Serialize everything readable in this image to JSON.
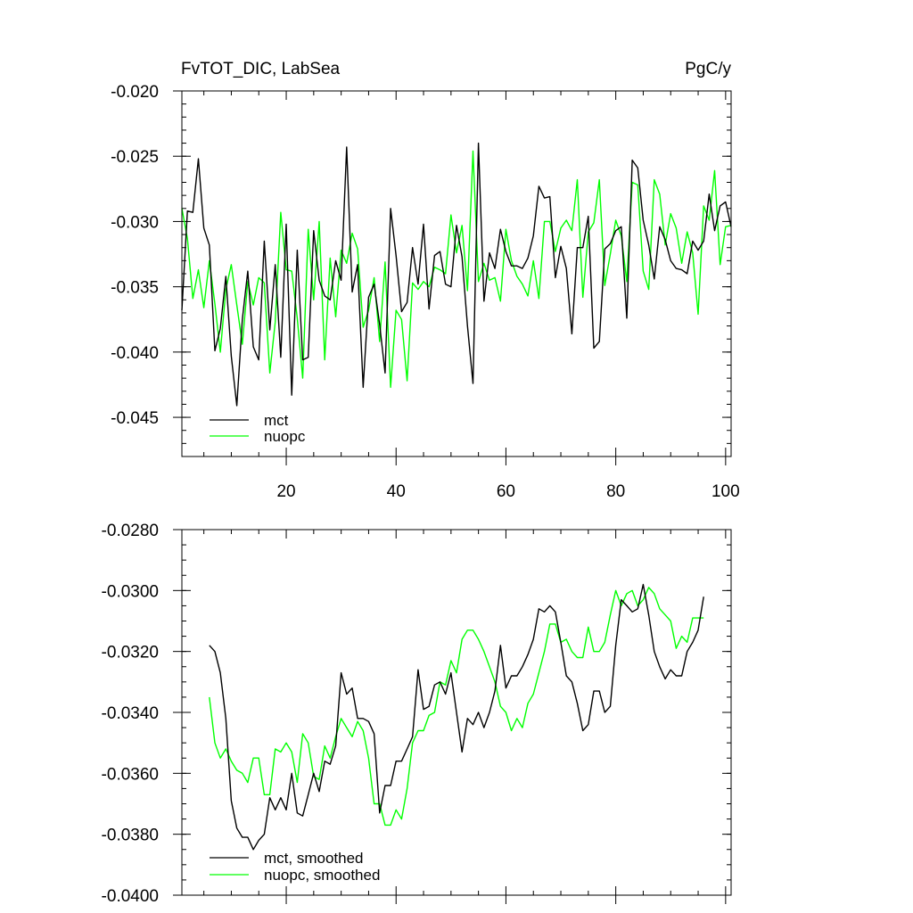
{
  "chart_data": [
    {
      "type": "line",
      "title_left": "FvTOT_DIC, LabSea",
      "title_right": "PgC/y",
      "xlim": [
        1,
        101
      ],
      "ylim": [
        -0.048,
        -0.02
      ],
      "xticks": [
        20,
        40,
        60,
        80,
        100
      ],
      "xtick_labels": [
        "20",
        "40",
        "60",
        "80",
        "100"
      ],
      "yticks": [
        -0.045,
        -0.04,
        -0.035,
        -0.03,
        -0.025,
        -0.02
      ],
      "ytick_labels": [
        "-0.045",
        "-0.040",
        "-0.035",
        "-0.030",
        "-0.025",
        "-0.020"
      ],
      "legend_position": "bottom-left",
      "series": [
        {
          "name": "mct",
          "color": "#000000",
          "x": [
            1,
            2,
            3,
            4,
            5,
            6,
            7,
            8,
            9,
            10,
            11,
            12,
            13,
            14,
            15,
            16,
            17,
            18,
            19,
            20,
            21,
            22,
            23,
            24,
            25,
            26,
            27,
            28,
            29,
            30,
            31,
            32,
            33,
            34,
            35,
            36,
            37,
            38,
            39,
            40,
            41,
            42,
            43,
            44,
            45,
            46,
            47,
            48,
            49,
            50,
            51,
            52,
            53,
            54,
            55,
            56,
            57,
            58,
            59,
            60,
            61,
            62,
            63,
            64,
            65,
            66,
            67,
            68,
            69,
            70,
            71,
            72,
            73,
            74,
            75,
            76,
            77,
            78,
            79,
            80,
            81,
            82,
            83,
            84,
            85,
            86,
            87,
            88,
            89,
            90,
            91,
            92,
            93,
            94,
            95,
            96,
            97,
            98,
            99,
            100,
            101
          ],
          "values": [
            -0.0368,
            -0.0292,
            -0.0293,
            -0.0252,
            -0.0305,
            -0.0318,
            -0.0399,
            -0.0382,
            -0.0342,
            -0.0403,
            -0.0441,
            -0.0375,
            -0.0338,
            -0.0396,
            -0.0406,
            -0.0315,
            -0.0383,
            -0.0333,
            -0.0404,
            -0.0302,
            -0.0433,
            -0.0322,
            -0.0406,
            -0.0404,
            -0.0307,
            -0.0345,
            -0.0357,
            -0.036,
            -0.033,
            -0.0345,
            -0.0243,
            -0.0354,
            -0.0333,
            -0.0427,
            -0.0358,
            -0.0348,
            -0.0379,
            -0.0416,
            -0.029,
            -0.0326,
            -0.0369,
            -0.0362,
            -0.032,
            -0.0348,
            -0.0302,
            -0.0367,
            -0.0326,
            -0.0323,
            -0.0348,
            -0.035,
            -0.0303,
            -0.0327,
            -0.038,
            -0.0424,
            -0.024,
            -0.0361,
            -0.0324,
            -0.0336,
            -0.0306,
            -0.0323,
            -0.0334,
            -0.0334,
            -0.0336,
            -0.0328,
            -0.0311,
            -0.0273,
            -0.0282,
            -0.0281,
            -0.0343,
            -0.0319,
            -0.0336,
            -0.0386,
            -0.032,
            -0.032,
            -0.0296,
            -0.0397,
            -0.0392,
            -0.0321,
            -0.0317,
            -0.0307,
            -0.0304,
            -0.0374,
            -0.0253,
            -0.0259,
            -0.0299,
            -0.0318,
            -0.0344,
            -0.0304,
            -0.0314,
            -0.033,
            -0.0336,
            -0.0337,
            -0.034,
            -0.0315,
            -0.0322,
            -0.0315,
            -0.0279,
            -0.0307,
            -0.0288,
            -0.0285,
            -0.0304
          ]
        },
        {
          "name": "nuopc",
          "color": "#00ff00",
          "x": [
            1,
            2,
            3,
            4,
            5,
            6,
            7,
            8,
            9,
            10,
            11,
            12,
            13,
            14,
            15,
            16,
            17,
            18,
            19,
            20,
            21,
            22,
            23,
            24,
            25,
            26,
            27,
            28,
            29,
            30,
            31,
            32,
            33,
            34,
            35,
            36,
            37,
            38,
            39,
            40,
            41,
            42,
            43,
            44,
            45,
            46,
            47,
            48,
            49,
            50,
            51,
            52,
            53,
            54,
            55,
            56,
            57,
            58,
            59,
            60,
            61,
            62,
            63,
            64,
            65,
            66,
            67,
            68,
            69,
            70,
            71,
            72,
            73,
            74,
            75,
            76,
            77,
            78,
            79,
            80,
            81,
            82,
            83,
            84,
            85,
            86,
            87,
            88,
            89,
            90,
            91,
            92,
            93,
            94,
            95,
            96,
            97,
            98,
            99,
            100,
            101
          ],
          "values": [
            -0.029,
            -0.0313,
            -0.0359,
            -0.0337,
            -0.0366,
            -0.033,
            -0.0363,
            -0.04,
            -0.0352,
            -0.0333,
            -0.0364,
            -0.0394,
            -0.0346,
            -0.0364,
            -0.0343,
            -0.0347,
            -0.0416,
            -0.0377,
            -0.0293,
            -0.0337,
            -0.0338,
            -0.0374,
            -0.042,
            -0.0306,
            -0.036,
            -0.03,
            -0.0406,
            -0.0328,
            -0.0373,
            -0.0322,
            -0.0332,
            -0.0309,
            -0.0321,
            -0.0381,
            -0.0368,
            -0.0343,
            -0.0392,
            -0.0331,
            -0.0427,
            -0.0368,
            -0.0375,
            -0.0422,
            -0.0347,
            -0.0352,
            -0.0346,
            -0.035,
            -0.0335,
            -0.0337,
            -0.034,
            -0.0295,
            -0.0324,
            -0.0303,
            -0.0353,
            -0.0246,
            -0.0346,
            -0.0332,
            -0.0345,
            -0.0343,
            -0.0361,
            -0.0306,
            -0.033,
            -0.0342,
            -0.0348,
            -0.0357,
            -0.033,
            -0.0359,
            -0.03,
            -0.03,
            -0.0323,
            -0.0305,
            -0.0299,
            -0.0307,
            -0.0268,
            -0.0358,
            -0.0308,
            -0.0301,
            -0.0268,
            -0.0349,
            -0.0325,
            -0.0299,
            -0.0311,
            -0.0346,
            -0.027,
            -0.0272,
            -0.0338,
            -0.0352,
            -0.0268,
            -0.0279,
            -0.0318,
            -0.0294,
            -0.0305,
            -0.0332,
            -0.0308,
            -0.0324,
            -0.0371,
            -0.0288,
            -0.0299,
            -0.0261,
            -0.0333,
            -0.0304,
            -0.0303
          ]
        }
      ]
    },
    {
      "type": "line",
      "xlim": [
        1,
        101
      ],
      "ylim": [
        -0.04,
        -0.028
      ],
      "xticks": [
        20,
        40,
        60,
        80,
        100
      ],
      "yticks": [
        -0.04,
        -0.038,
        -0.036,
        -0.034,
        -0.032,
        -0.03,
        -0.028
      ],
      "ytick_labels": [
        "-0.0400",
        "-0.0380",
        "-0.0360",
        "-0.0340",
        "-0.0320",
        "-0.0300",
        "-0.0280"
      ],
      "legend_position": "bottom-left",
      "series": [
        {
          "name": "mct, smoothed",
          "color": "#000000",
          "x": [
            6,
            7,
            8,
            9,
            10,
            11,
            12,
            13,
            14,
            15,
            16,
            17,
            18,
            19,
            20,
            21,
            22,
            23,
            24,
            25,
            26,
            27,
            28,
            29,
            30,
            31,
            32,
            33,
            34,
            35,
            36,
            37,
            38,
            39,
            40,
            41,
            42,
            43,
            44,
            45,
            46,
            47,
            48,
            49,
            50,
            51,
            52,
            53,
            54,
            55,
            56,
            57,
            58,
            59,
            60,
            61,
            62,
            63,
            64,
            65,
            66,
            67,
            68,
            69,
            70,
            71,
            72,
            73,
            74,
            75,
            76,
            77,
            78,
            79,
            80,
            81,
            82,
            83,
            84,
            85,
            86,
            87,
            88,
            89,
            90,
            91,
            92,
            93,
            94,
            95,
            96
          ],
          "values": [
            -0.0318,
            -0.032,
            -0.0327,
            -0.0342,
            -0.0369,
            -0.0378,
            -0.0381,
            -0.0381,
            -0.0385,
            -0.0382,
            -0.038,
            -0.0368,
            -0.0372,
            -0.0368,
            -0.0372,
            -0.036,
            -0.0373,
            -0.0374,
            -0.0367,
            -0.036,
            -0.0366,
            -0.0356,
            -0.0357,
            -0.0351,
            -0.0327,
            -0.0334,
            -0.0332,
            -0.0342,
            -0.0342,
            -0.0343,
            -0.0347,
            -0.0373,
            -0.0364,
            -0.0364,
            -0.0356,
            -0.0356,
            -0.0352,
            -0.0348,
            -0.0326,
            -0.0339,
            -0.0338,
            -0.0331,
            -0.033,
            -0.0334,
            -0.0327,
            -0.034,
            -0.0353,
            -0.0342,
            -0.0344,
            -0.034,
            -0.0345,
            -0.034,
            -0.0333,
            -0.0318,
            -0.0332,
            -0.0328,
            -0.0328,
            -0.0325,
            -0.0321,
            -0.0316,
            -0.0306,
            -0.0307,
            -0.0305,
            -0.0307,
            -0.0317,
            -0.0328,
            -0.033,
            -0.0337,
            -0.0346,
            -0.0344,
            -0.0333,
            -0.0333,
            -0.034,
            -0.0338,
            -0.0318,
            -0.0303,
            -0.0305,
            -0.0307,
            -0.0306,
            -0.0298,
            -0.0308,
            -0.032,
            -0.0325,
            -0.0329,
            -0.0326,
            -0.0328,
            -0.0328,
            -0.032,
            -0.0317,
            -0.0313,
            -0.0302
          ]
        },
        {
          "name": "nuopc, smoothed",
          "color": "#00ff00",
          "x": [
            6,
            7,
            8,
            9,
            10,
            11,
            12,
            13,
            14,
            15,
            16,
            17,
            18,
            19,
            20,
            21,
            22,
            23,
            24,
            25,
            26,
            27,
            28,
            29,
            30,
            31,
            32,
            33,
            34,
            35,
            36,
            37,
            38,
            39,
            40,
            41,
            42,
            43,
            44,
            45,
            46,
            47,
            48,
            49,
            50,
            51,
            52,
            53,
            54,
            55,
            56,
            57,
            58,
            59,
            60,
            61,
            62,
            63,
            64,
            65,
            66,
            67,
            68,
            69,
            70,
            71,
            72,
            73,
            74,
            75,
            76,
            77,
            78,
            79,
            80,
            81,
            82,
            83,
            84,
            85,
            86,
            87,
            88,
            89,
            90,
            91,
            92,
            93,
            94,
            95,
            96
          ],
          "values": [
            -0.0335,
            -0.035,
            -0.0355,
            -0.0352,
            -0.0356,
            -0.0359,
            -0.036,
            -0.0363,
            -0.0355,
            -0.0355,
            -0.0367,
            -0.0367,
            -0.0352,
            -0.0353,
            -0.035,
            -0.0353,
            -0.0363,
            -0.0347,
            -0.035,
            -0.0361,
            -0.0362,
            -0.0351,
            -0.0355,
            -0.0348,
            -0.0342,
            -0.0345,
            -0.0348,
            -0.0343,
            -0.0346,
            -0.0355,
            -0.037,
            -0.037,
            -0.0377,
            -0.0377,
            -0.0372,
            -0.0375,
            -0.0365,
            -0.035,
            -0.0346,
            -0.0346,
            -0.0341,
            -0.034,
            -0.033,
            -0.0331,
            -0.0323,
            -0.0327,
            -0.0316,
            -0.0313,
            -0.0313,
            -0.0316,
            -0.032,
            -0.0325,
            -0.033,
            -0.0338,
            -0.034,
            -0.0346,
            -0.0342,
            -0.0345,
            -0.0337,
            -0.0334,
            -0.0327,
            -0.032,
            -0.0311,
            -0.0311,
            -0.0317,
            -0.0316,
            -0.032,
            -0.0322,
            -0.0322,
            -0.0312,
            -0.032,
            -0.032,
            -0.0317,
            -0.0308,
            -0.03,
            -0.0305,
            -0.0301,
            -0.03,
            -0.0305,
            -0.0303,
            -0.0299,
            -0.0301,
            -0.0306,
            -0.0308,
            -0.031,
            -0.0319,
            -0.0315,
            -0.0317,
            -0.0309,
            -0.0309,
            -0.0309
          ]
        }
      ]
    }
  ]
}
